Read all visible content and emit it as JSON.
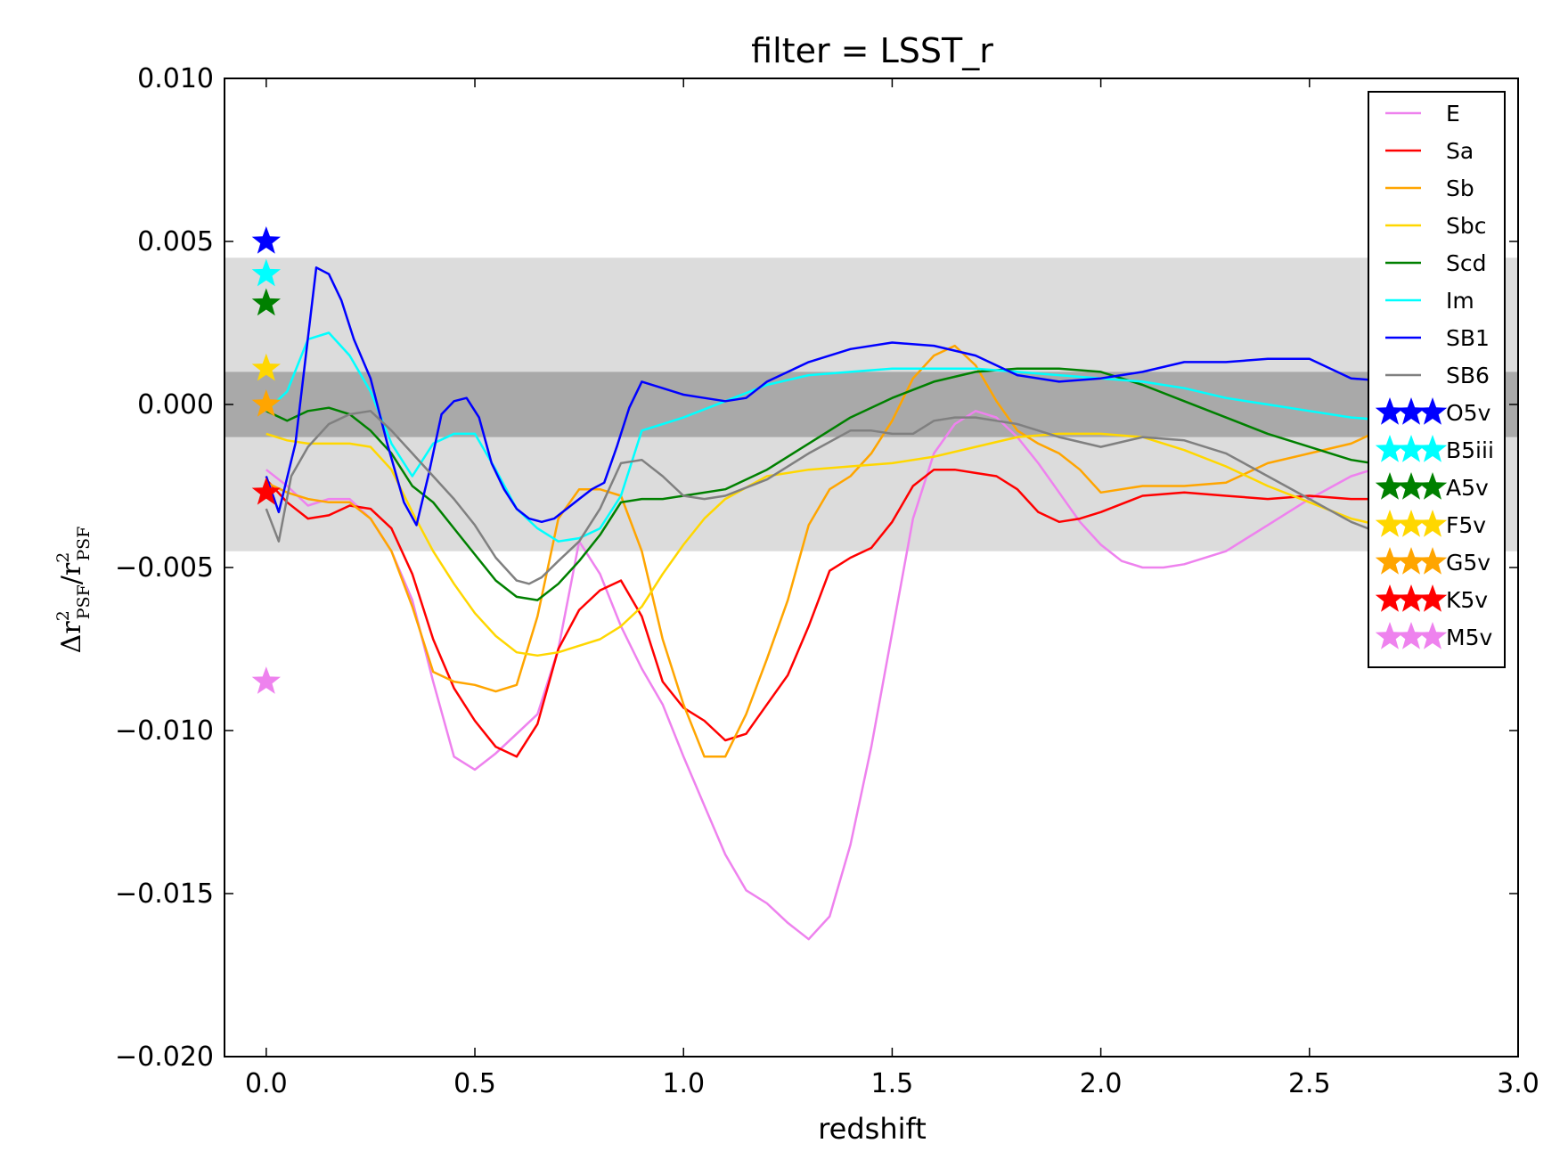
{
  "chart_data": {
    "type": "line",
    "title": "filter = LSST_r",
    "xlabel": "redshift",
    "ylabel": "Δr²PSF/r²PSF",
    "ylabel_parts": {
      "delta": "Δr",
      "sup": "2",
      "sub": "PSF",
      "slash": "/r"
    },
    "xlim": [
      -0.1,
      3.0
    ],
    "ylim": [
      -0.02,
      0.01
    ],
    "xticks": [
      0.0,
      0.5,
      1.0,
      1.5,
      2.0,
      2.5,
      3.0
    ],
    "xtick_labels": [
      "0.0",
      "0.5",
      "1.0",
      "1.5",
      "2.0",
      "2.5",
      "3.0"
    ],
    "yticks": [
      -0.02,
      -0.015,
      -0.01,
      -0.005,
      0.0,
      0.005,
      0.01
    ],
    "ytick_labels": [
      "−0.020",
      "−0.015",
      "−0.010",
      "−0.005",
      "0.000",
      "0.005",
      "0.010"
    ],
    "bands": [
      {
        "ymin": -0.0045,
        "ymax": 0.0045,
        "color": "#dcdcdc"
      },
      {
        "ymin": -0.001,
        "ymax": 0.001,
        "color": "#a9a9a9"
      }
    ],
    "legend_position": "upper right",
    "series": [
      {
        "name": "E",
        "color": "#ee82ee",
        "x": [
          0.0,
          0.05,
          0.1,
          0.15,
          0.2,
          0.25,
          0.3,
          0.35,
          0.4,
          0.45,
          0.5,
          0.55,
          0.6,
          0.65,
          0.7,
          0.75,
          0.8,
          0.85,
          0.9,
          0.95,
          1.0,
          1.05,
          1.1,
          1.15,
          1.2,
          1.25,
          1.3,
          1.35,
          1.4,
          1.45,
          1.5,
          1.55,
          1.6,
          1.65,
          1.7,
          1.75,
          1.8,
          1.85,
          1.9,
          1.95,
          2.0,
          2.05,
          2.1,
          2.15,
          2.2,
          2.3,
          2.4,
          2.5,
          2.6,
          2.7
        ],
        "y": [
          -0.002,
          -0.0025,
          -0.0031,
          -0.0029,
          -0.0029,
          -0.0035,
          -0.0045,
          -0.006,
          -0.0085,
          -0.0108,
          -0.0112,
          -0.0107,
          -0.0101,
          -0.0095,
          -0.0075,
          -0.0042,
          -0.0052,
          -0.0068,
          -0.0081,
          -0.0092,
          -0.0108,
          -0.0123,
          -0.0138,
          -0.0149,
          -0.0153,
          -0.0159,
          -0.0164,
          -0.0157,
          -0.0135,
          -0.0105,
          -0.007,
          -0.0035,
          -0.0015,
          -0.0006,
          -0.0002,
          -0.0004,
          -0.001,
          -0.0018,
          -0.0027,
          -0.0036,
          -0.0043,
          -0.0048,
          -0.005,
          -0.005,
          -0.0049,
          -0.0045,
          -0.0037,
          -0.0029,
          -0.0022,
          -0.0018
        ]
      },
      {
        "name": "Sa",
        "color": "#ff0000",
        "x": [
          0.0,
          0.05,
          0.1,
          0.15,
          0.2,
          0.25,
          0.3,
          0.35,
          0.4,
          0.45,
          0.5,
          0.55,
          0.6,
          0.65,
          0.7,
          0.75,
          0.8,
          0.85,
          0.9,
          0.95,
          1.0,
          1.05,
          1.1,
          1.15,
          1.2,
          1.25,
          1.3,
          1.35,
          1.4,
          1.45,
          1.5,
          1.55,
          1.6,
          1.65,
          1.7,
          1.75,
          1.8,
          1.85,
          1.9,
          1.95,
          2.0,
          2.1,
          2.2,
          2.3,
          2.4,
          2.5,
          2.6,
          2.7
        ],
        "y": [
          -0.0023,
          -0.003,
          -0.0035,
          -0.0034,
          -0.0031,
          -0.0032,
          -0.0038,
          -0.0052,
          -0.0072,
          -0.0087,
          -0.0097,
          -0.0105,
          -0.0108,
          -0.0098,
          -0.0075,
          -0.0063,
          -0.0057,
          -0.0054,
          -0.0065,
          -0.0085,
          -0.0093,
          -0.0097,
          -0.0103,
          -0.0101,
          -0.0092,
          -0.0083,
          -0.0068,
          -0.0051,
          -0.0047,
          -0.0044,
          -0.0036,
          -0.0025,
          -0.002,
          -0.002,
          -0.0021,
          -0.0022,
          -0.0026,
          -0.0033,
          -0.0036,
          -0.0035,
          -0.0033,
          -0.0028,
          -0.0027,
          -0.0028,
          -0.0029,
          -0.0028,
          -0.0029,
          -0.0029
        ]
      },
      {
        "name": "Sb",
        "color": "#ffa500",
        "x": [
          0.0,
          0.05,
          0.1,
          0.15,
          0.2,
          0.25,
          0.3,
          0.35,
          0.4,
          0.45,
          0.5,
          0.55,
          0.6,
          0.65,
          0.7,
          0.75,
          0.8,
          0.85,
          0.9,
          0.95,
          1.0,
          1.05,
          1.1,
          1.15,
          1.2,
          1.25,
          1.3,
          1.35,
          1.4,
          1.45,
          1.5,
          1.55,
          1.6,
          1.65,
          1.7,
          1.75,
          1.8,
          1.85,
          1.9,
          1.95,
          2.0,
          2.1,
          2.2,
          2.3,
          2.4,
          2.5,
          2.6,
          2.7
        ],
        "y": [
          -0.0024,
          -0.0027,
          -0.0029,
          -0.003,
          -0.003,
          -0.0035,
          -0.0045,
          -0.0062,
          -0.0082,
          -0.0085,
          -0.0086,
          -0.0088,
          -0.0086,
          -0.0065,
          -0.0035,
          -0.0026,
          -0.0026,
          -0.0028,
          -0.0045,
          -0.0072,
          -0.0092,
          -0.0108,
          -0.0108,
          -0.0095,
          -0.0078,
          -0.006,
          -0.0037,
          -0.0026,
          -0.0022,
          -0.0015,
          -0.0005,
          0.0008,
          0.0015,
          0.0018,
          0.0012,
          0.0001,
          -0.0008,
          -0.0012,
          -0.0015,
          -0.002,
          -0.0027,
          -0.0025,
          -0.0025,
          -0.0024,
          -0.0018,
          -0.0015,
          -0.0012,
          -0.0006
        ]
      },
      {
        "name": "Sbc",
        "color": "#ffd700",
        "x": [
          0.0,
          0.05,
          0.1,
          0.15,
          0.2,
          0.25,
          0.3,
          0.35,
          0.4,
          0.45,
          0.5,
          0.55,
          0.6,
          0.65,
          0.7,
          0.75,
          0.8,
          0.85,
          0.9,
          0.95,
          1.0,
          1.05,
          1.1,
          1.2,
          1.3,
          1.4,
          1.5,
          1.6,
          1.7,
          1.8,
          1.9,
          2.0,
          2.1,
          2.2,
          2.3,
          2.4,
          2.5,
          2.6,
          2.7
        ],
        "y": [
          -0.0009,
          -0.0011,
          -0.0012,
          -0.0012,
          -0.0012,
          -0.0013,
          -0.002,
          -0.0033,
          -0.0045,
          -0.0055,
          -0.0064,
          -0.0071,
          -0.0076,
          -0.0077,
          -0.0076,
          -0.0074,
          -0.0072,
          -0.0068,
          -0.0062,
          -0.0052,
          -0.0043,
          -0.0035,
          -0.0029,
          -0.0022,
          -0.002,
          -0.0019,
          -0.0018,
          -0.0016,
          -0.0013,
          -0.001,
          -0.0009,
          -0.0009,
          -0.001,
          -0.0014,
          -0.0019,
          -0.0025,
          -0.003,
          -0.0035,
          -0.0038
        ]
      },
      {
        "name": "Scd",
        "color": "#008000",
        "x": [
          0.0,
          0.05,
          0.1,
          0.15,
          0.2,
          0.25,
          0.3,
          0.35,
          0.4,
          0.45,
          0.5,
          0.55,
          0.6,
          0.65,
          0.7,
          0.75,
          0.8,
          0.85,
          0.9,
          0.95,
          1.0,
          1.1,
          1.2,
          1.3,
          1.4,
          1.5,
          1.6,
          1.7,
          1.8,
          1.9,
          2.0,
          2.1,
          2.2,
          2.3,
          2.4,
          2.5,
          2.6,
          2.7
        ],
        "y": [
          -0.0002,
          -0.0005,
          -0.0002,
          -0.0001,
          -0.0003,
          -0.0008,
          -0.0015,
          -0.0025,
          -0.003,
          -0.0038,
          -0.0046,
          -0.0054,
          -0.0059,
          -0.006,
          -0.0055,
          -0.0048,
          -0.004,
          -0.003,
          -0.0029,
          -0.0029,
          -0.0028,
          -0.0026,
          -0.002,
          -0.0012,
          -0.0004,
          0.0002,
          0.0007,
          0.001,
          0.0011,
          0.0011,
          0.001,
          0.0006,
          0.0001,
          -0.0004,
          -0.0009,
          -0.0013,
          -0.0017,
          -0.0019
        ]
      },
      {
        "name": "Im",
        "color": "#00ffff",
        "x": [
          0.0,
          0.05,
          0.1,
          0.15,
          0.2,
          0.25,
          0.3,
          0.35,
          0.4,
          0.45,
          0.5,
          0.55,
          0.6,
          0.65,
          0.7,
          0.75,
          0.8,
          0.85,
          0.9,
          0.95,
          1.0,
          1.1,
          1.2,
          1.3,
          1.4,
          1.5,
          1.6,
          1.7,
          1.8,
          1.9,
          2.0,
          2.1,
          2.2,
          2.3,
          2.4,
          2.5,
          2.6,
          2.7
        ],
        "y": [
          -0.0002,
          0.0004,
          0.002,
          0.0022,
          0.0015,
          0.0004,
          -0.0012,
          -0.0022,
          -0.0012,
          -0.0009,
          -0.0009,
          -0.002,
          -0.0032,
          -0.0038,
          -0.0042,
          -0.0041,
          -0.0038,
          -0.0028,
          -0.0008,
          -0.0006,
          -0.0004,
          0.0001,
          0.0006,
          0.0009,
          0.001,
          0.0011,
          0.0011,
          0.0011,
          0.001,
          0.0009,
          0.0008,
          0.0007,
          0.0005,
          0.0002,
          0.0,
          -0.0002,
          -0.0004,
          -0.0005
        ]
      },
      {
        "name": "SB1",
        "color": "#0000ff",
        "x": [
          0.0,
          0.03,
          0.07,
          0.12,
          0.15,
          0.18,
          0.21,
          0.25,
          0.29,
          0.33,
          0.36,
          0.39,
          0.42,
          0.45,
          0.48,
          0.51,
          0.54,
          0.57,
          0.6,
          0.63,
          0.66,
          0.69,
          0.72,
          0.75,
          0.78,
          0.81,
          0.84,
          0.87,
          0.9,
          0.95,
          1.0,
          1.05,
          1.1,
          1.15,
          1.2,
          1.3,
          1.4,
          1.5,
          1.6,
          1.7,
          1.8,
          1.9,
          2.0,
          2.1,
          2.2,
          2.3,
          2.4,
          2.5,
          2.6,
          2.7
        ],
        "y": [
          -0.0022,
          -0.0033,
          -0.0012,
          0.0042,
          0.004,
          0.0032,
          0.002,
          0.0008,
          -0.0012,
          -0.003,
          -0.0037,
          -0.0021,
          -0.0003,
          0.0001,
          0.0002,
          -0.0004,
          -0.0018,
          -0.0026,
          -0.0032,
          -0.0035,
          -0.0036,
          -0.0035,
          -0.0032,
          -0.0029,
          -0.0026,
          -0.0024,
          -0.0013,
          -0.0001,
          0.0007,
          0.0005,
          0.0003,
          0.0002,
          0.0001,
          0.0002,
          0.0007,
          0.0013,
          0.0017,
          0.0019,
          0.0018,
          0.0015,
          0.0009,
          0.0007,
          0.0008,
          0.001,
          0.0013,
          0.0013,
          0.0014,
          0.0014,
          0.0008,
          0.0007
        ]
      },
      {
        "name": "SB6",
        "color": "#808080",
        "x": [
          0.0,
          0.03,
          0.06,
          0.1,
          0.15,
          0.2,
          0.25,
          0.3,
          0.35,
          0.4,
          0.45,
          0.5,
          0.55,
          0.6,
          0.63,
          0.66,
          0.7,
          0.75,
          0.8,
          0.85,
          0.9,
          0.95,
          1.0,
          1.05,
          1.1,
          1.2,
          1.3,
          1.4,
          1.45,
          1.5,
          1.55,
          1.6,
          1.65,
          1.7,
          1.75,
          1.8,
          1.9,
          2.0,
          2.1,
          2.2,
          2.3,
          2.4,
          2.5,
          2.6,
          2.7
        ],
        "y": [
          -0.0032,
          -0.0042,
          -0.0022,
          -0.0013,
          -0.0006,
          -0.0003,
          -0.0002,
          -0.0008,
          -0.0015,
          -0.0022,
          -0.0029,
          -0.0037,
          -0.0047,
          -0.0054,
          -0.0055,
          -0.0053,
          -0.0048,
          -0.0042,
          -0.0032,
          -0.0018,
          -0.0017,
          -0.0022,
          -0.0028,
          -0.0029,
          -0.0028,
          -0.0023,
          -0.0015,
          -0.0008,
          -0.0008,
          -0.0009,
          -0.0009,
          -0.0005,
          -0.0004,
          -0.0004,
          -0.0005,
          -0.0006,
          -0.001,
          -0.0013,
          -0.001,
          -0.0011,
          -0.0015,
          -0.0022,
          -0.0029,
          -0.0036,
          -0.0041
        ]
      },
      {
        "name": "O5v",
        "color": "#0000ff",
        "marker": "star",
        "x": [
          0.0
        ],
        "y": [
          0.005
        ]
      },
      {
        "name": "B5iii",
        "color": "#00ffff",
        "marker": "star",
        "x": [
          0.0
        ],
        "y": [
          0.004
        ]
      },
      {
        "name": "A5v",
        "color": "#008000",
        "marker": "star",
        "x": [
          0.0
        ],
        "y": [
          0.0031
        ]
      },
      {
        "name": "F5v",
        "color": "#ffd700",
        "marker": "star",
        "x": [
          0.0
        ],
        "y": [
          0.0011
        ]
      },
      {
        "name": "G5v",
        "color": "#ffa500",
        "marker": "star",
        "x": [
          0.0
        ],
        "y": [
          0.0
        ]
      },
      {
        "name": "K5v",
        "color": "#ff0000",
        "marker": "star",
        "x": [
          0.0
        ],
        "y": [
          -0.0027
        ]
      },
      {
        "name": "M5v",
        "color": "#ee82ee",
        "marker": "star",
        "x": [
          0.0
        ],
        "y": [
          -0.0085
        ]
      }
    ]
  }
}
